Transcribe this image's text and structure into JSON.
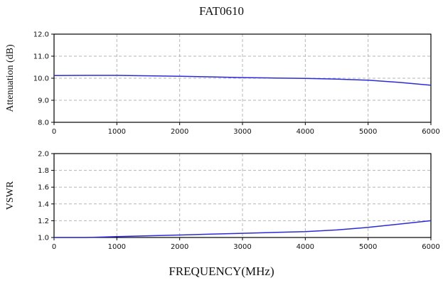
{
  "chart_data": [
    {
      "type": "line",
      "title": "FAT0610",
      "xlabel": "",
      "ylabel": "Attenuation (dB)",
      "xlim": [
        0,
        6000
      ],
      "ylim": [
        8.0,
        12.0
      ],
      "xticks": [
        "0",
        "1000",
        "2000",
        "3000",
        "4000",
        "5000",
        "6000"
      ],
      "yticks": [
        "8.0",
        "9.0",
        "10.0",
        "11.0",
        "12.0"
      ],
      "grid": true,
      "color": "#2b2bd6",
      "x": [
        0,
        500,
        1000,
        1500,
        2000,
        2500,
        3000,
        3500,
        4000,
        4500,
        5000,
        5500,
        6000
      ],
      "y": [
        10.12,
        10.13,
        10.13,
        10.11,
        10.09,
        10.06,
        10.03,
        10.01,
        9.99,
        9.96,
        9.91,
        9.81,
        9.68
      ]
    },
    {
      "type": "line",
      "title": "",
      "xlabel": "FREQUENCY(MHz)",
      "ylabel": "VSWR",
      "xlim": [
        0,
        6000
      ],
      "ylim": [
        1.0,
        2.0
      ],
      "xticks": [
        "0",
        "1000",
        "2000",
        "3000",
        "4000",
        "5000",
        "6000"
      ],
      "yticks": [
        "1.0",
        "1.2",
        "1.4",
        "1.6",
        "1.8",
        "2.0"
      ],
      "grid": true,
      "color": "#2b2bd6",
      "x": [
        0,
        500,
        1000,
        1500,
        2000,
        2500,
        3000,
        3500,
        4000,
        4500,
        5000,
        5500,
        6000
      ],
      "y": [
        1.0,
        1.0,
        1.01,
        1.02,
        1.03,
        1.04,
        1.05,
        1.06,
        1.07,
        1.09,
        1.12,
        1.16,
        1.2
      ]
    }
  ]
}
